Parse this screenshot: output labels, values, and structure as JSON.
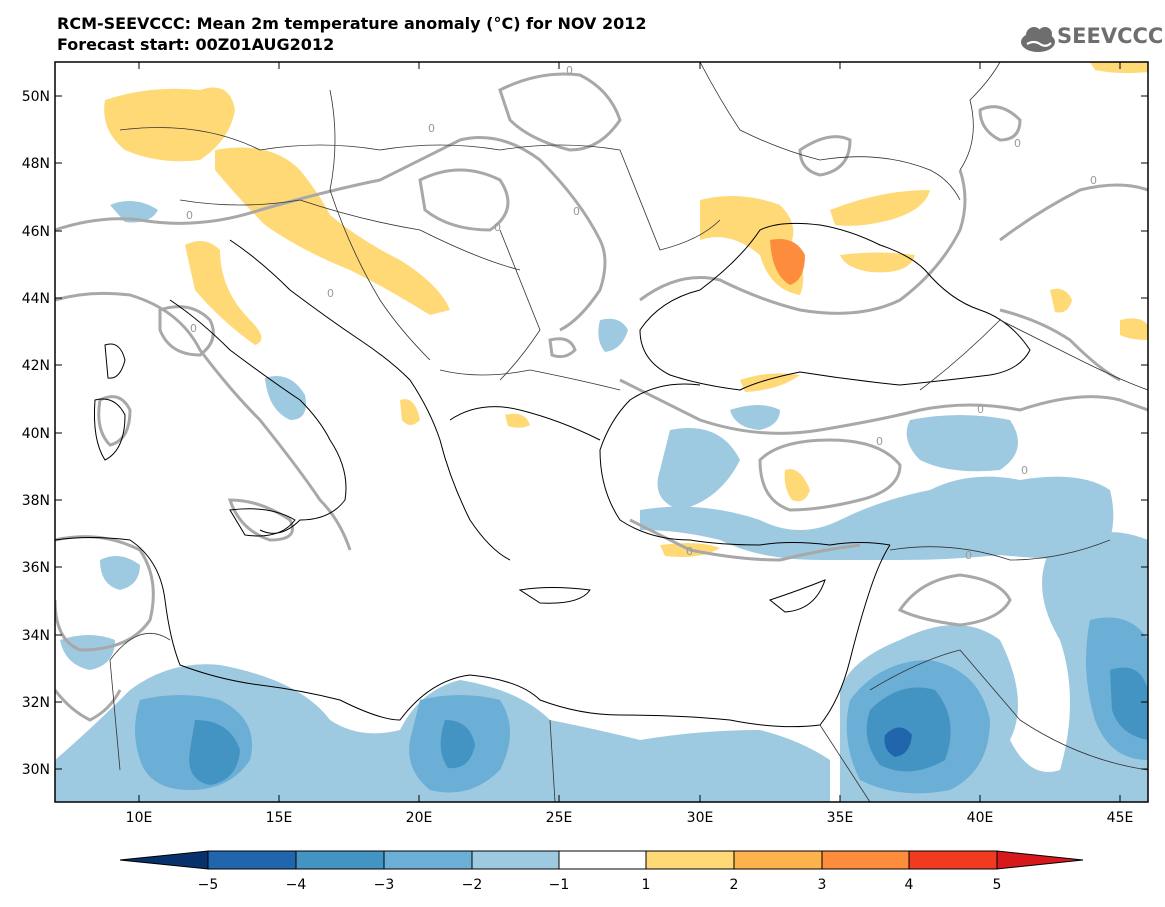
{
  "header": {
    "title": "RCM-SEEVCCC: Mean 2m temperature anomaly (°C) for NOV 2012",
    "subtitle": "Forecast start: 00Z01AUG2012",
    "logo_text": "SEEVCCC"
  },
  "map": {
    "lon_range": [
      7,
      46
    ],
    "lat_range": [
      29,
      51
    ],
    "lat_labels": [
      "50N",
      "48N",
      "46N",
      "44N",
      "42N",
      "40N",
      "38N",
      "36N",
      "34N",
      "32N",
      "30N"
    ],
    "lon_labels": [
      "10E",
      "15E",
      "20E",
      "25E",
      "30E",
      "35E",
      "40E",
      "45E"
    ],
    "contour_label": "0"
  },
  "colorbar": {
    "tick_labels": [
      "−5",
      "−4",
      "−3",
      "−2",
      "−1",
      "1",
      "2",
      "3",
      "4",
      "5"
    ],
    "colors": [
      "#08306b",
      "#2166ac",
      "#4393c3",
      "#6baed6",
      "#9ecae1",
      "#ffffff",
      "#fed976",
      "#feb24c",
      "#fd8d3c",
      "#f03b20",
      "#bd0026"
    ]
  }
}
